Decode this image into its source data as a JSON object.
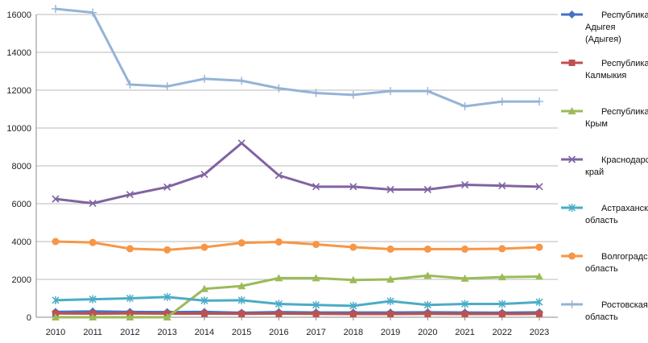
{
  "chart_data": {
    "type": "line",
    "title": "",
    "xlabel": "",
    "ylabel": "",
    "x": [
      "2010",
      "2011",
      "2012",
      "2013",
      "2014",
      "2015",
      "2016",
      "2017",
      "2018",
      "2019",
      "2020",
      "2021",
      "2022",
      "2023"
    ],
    "ylim": [
      0,
      16000
    ],
    "yticks": [
      0,
      2000,
      4000,
      6000,
      8000,
      10000,
      12000,
      14000,
      16000
    ],
    "ytick_labels": [
      "0",
      "2000",
      "4000",
      "6000",
      "8000",
      "10000",
      "12000",
      "14000",
      "16000"
    ],
    "grid": "horizontal",
    "legend_position": "right",
    "series": [
      {
        "name_lines": [
          "Республика",
          "Адыгея",
          "(Адыгея)"
        ],
        "color": "#4472C4",
        "marker": "diamond",
        "values": [
          280,
          310,
          280,
          270,
          280,
          240,
          270,
          250,
          250,
          250,
          260,
          250,
          240,
          260
        ]
      },
      {
        "name_lines": [
          "Республика",
          "Калмыкия"
        ],
        "color": "#C0504D",
        "marker": "square",
        "values": [
          200,
          190,
          200,
          190,
          190,
          180,
          190,
          180,
          170,
          170,
          180,
          170,
          170,
          180
        ]
      },
      {
        "name_lines": [
          "Республика",
          "Крым"
        ],
        "color": "#9BBB59",
        "marker": "triangle",
        "values": [
          0,
          0,
          0,
          0,
          1500,
          1650,
          2070,
          2070,
          1970,
          2000,
          2200,
          2050,
          2120,
          2150
        ]
      },
      {
        "name_lines": [
          "Краснодарский",
          "край"
        ],
        "color": "#8064A2",
        "marker": "x",
        "values": [
          6250,
          6020,
          6480,
          6880,
          7550,
          9200,
          7500,
          6900,
          6900,
          6750,
          6750,
          7000,
          6950,
          6900
        ]
      },
      {
        "name_lines": [
          "Астраханская",
          "область"
        ],
        "color": "#4BACC6",
        "marker": "star",
        "values": [
          900,
          950,
          1000,
          1070,
          880,
          900,
          700,
          650,
          600,
          850,
          650,
          700,
          700,
          800
        ]
      },
      {
        "name_lines": [
          "Волгоградская",
          "область"
        ],
        "color": "#F79646",
        "marker": "circle",
        "values": [
          4000,
          3950,
          3620,
          3560,
          3700,
          3930,
          3980,
          3850,
          3700,
          3600,
          3600,
          3600,
          3620,
          3700
        ]
      },
      {
        "name_lines": [
          "Ростовская",
          "область"
        ],
        "color": "#95B3D7",
        "marker": "plus",
        "values": [
          16300,
          16100,
          12300,
          12200,
          12600,
          12500,
          12100,
          11850,
          11750,
          11950,
          11950,
          11150,
          11400,
          11400
        ]
      }
    ]
  }
}
